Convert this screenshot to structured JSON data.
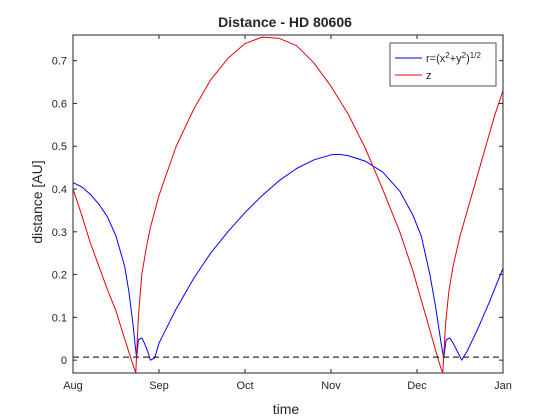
{
  "chart_data": {
    "type": "line",
    "title": "Distance - HD 80606",
    "xlabel": "time",
    "ylabel": "distance [AU]",
    "xlim": [
      "Aug",
      "Jan"
    ],
    "ylim": [
      -0.03,
      0.76
    ],
    "x_ticks": [
      "Aug",
      "Sep",
      "Oct",
      "Nov",
      "Dec",
      "Jan"
    ],
    "y_ticks": [
      "0",
      "0.1",
      "0.2",
      "0.3",
      "0.4",
      "0.5",
      "0.6",
      "0.7"
    ],
    "grid": false,
    "legend_position": "top-right",
    "x_months": [
      0,
      1,
      2,
      3,
      4,
      5
    ],
    "series": [
      {
        "name": "r=(x²+y²)^1/2",
        "color": "#0000ff",
        "points": [
          [
            0.0,
            0.415
          ],
          [
            0.1,
            0.405
          ],
          [
            0.2,
            0.388
          ],
          [
            0.3,
            0.365
          ],
          [
            0.4,
            0.335
          ],
          [
            0.5,
            0.29
          ],
          [
            0.6,
            0.22
          ],
          [
            0.65,
            0.16
          ],
          [
            0.7,
            0.08
          ],
          [
            0.72,
            0.04
          ],
          [
            0.74,
            0.005
          ],
          [
            0.76,
            0.048
          ],
          [
            0.8,
            0.052
          ],
          [
            0.83,
            0.04
          ],
          [
            0.87,
            0.02
          ],
          [
            0.9,
            0.0
          ],
          [
            0.95,
            0.005
          ],
          [
            1.0,
            0.04
          ],
          [
            1.2,
            0.12
          ],
          [
            1.4,
            0.19
          ],
          [
            1.6,
            0.25
          ],
          [
            1.8,
            0.3
          ],
          [
            2.0,
            0.345
          ],
          [
            2.2,
            0.385
          ],
          [
            2.4,
            0.42
          ],
          [
            2.6,
            0.448
          ],
          [
            2.8,
            0.468
          ],
          [
            3.0,
            0.48
          ],
          [
            3.1,
            0.481
          ],
          [
            3.2,
            0.478
          ],
          [
            3.4,
            0.465
          ],
          [
            3.6,
            0.44
          ],
          [
            3.8,
            0.395
          ],
          [
            3.95,
            0.34
          ],
          [
            4.05,
            0.29
          ],
          [
            4.15,
            0.2
          ],
          [
            4.22,
            0.12
          ],
          [
            4.28,
            0.04
          ],
          [
            4.31,
            0.005
          ],
          [
            4.34,
            0.048
          ],
          [
            4.38,
            0.052
          ],
          [
            4.42,
            0.04
          ],
          [
            4.47,
            0.02
          ],
          [
            4.52,
            0.0
          ],
          [
            4.58,
            0.02
          ],
          [
            4.7,
            0.07
          ],
          [
            4.85,
            0.14
          ],
          [
            5.0,
            0.215
          ]
        ]
      },
      {
        "name": "z",
        "color": "#e8000b",
        "points": [
          [
            0.0,
            0.4
          ],
          [
            0.1,
            0.34
          ],
          [
            0.2,
            0.275
          ],
          [
            0.3,
            0.22
          ],
          [
            0.4,
            0.165
          ],
          [
            0.5,
            0.115
          ],
          [
            0.6,
            0.05
          ],
          [
            0.68,
            0.0
          ],
          [
            0.73,
            -0.03
          ],
          [
            0.76,
            0.1
          ],
          [
            0.8,
            0.2
          ],
          [
            0.85,
            0.26
          ],
          [
            0.9,
            0.31
          ],
          [
            1.0,
            0.385
          ],
          [
            1.2,
            0.5
          ],
          [
            1.4,
            0.585
          ],
          [
            1.6,
            0.655
          ],
          [
            1.8,
            0.705
          ],
          [
            2.0,
            0.74
          ],
          [
            2.2,
            0.755
          ],
          [
            2.4,
            0.752
          ],
          [
            2.6,
            0.735
          ],
          [
            2.8,
            0.695
          ],
          [
            3.0,
            0.64
          ],
          [
            3.2,
            0.575
          ],
          [
            3.4,
            0.495
          ],
          [
            3.6,
            0.4
          ],
          [
            3.8,
            0.3
          ],
          [
            3.95,
            0.21
          ],
          [
            4.05,
            0.14
          ],
          [
            4.15,
            0.07
          ],
          [
            4.22,
            0.02
          ],
          [
            4.28,
            -0.02
          ],
          [
            4.3,
            -0.03
          ],
          [
            4.33,
            0.08
          ],
          [
            4.37,
            0.16
          ],
          [
            4.42,
            0.22
          ],
          [
            4.5,
            0.29
          ],
          [
            4.6,
            0.36
          ],
          [
            4.7,
            0.43
          ],
          [
            4.8,
            0.5
          ],
          [
            4.9,
            0.57
          ],
          [
            5.0,
            0.63
          ]
        ]
      }
    ],
    "reference_lines": [
      {
        "style": "dashed",
        "color": "#000000",
        "y": 0.007
      }
    ]
  }
}
